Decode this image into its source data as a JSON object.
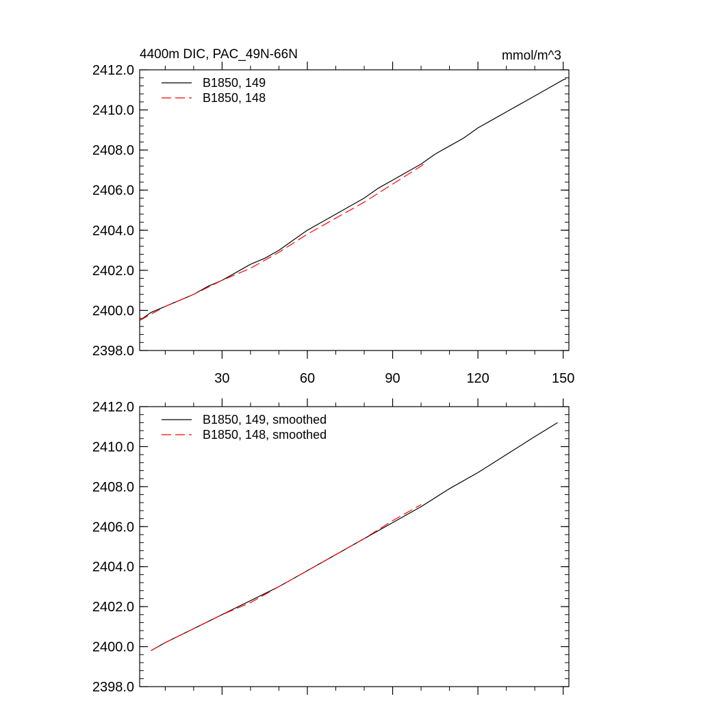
{
  "chart_data": [
    {
      "type": "line",
      "title": "4400m DIC, PAC_49N-66N",
      "units": "mmol/m^3",
      "xlim": [
        1,
        152
      ],
      "ylim": [
        2398.0,
        2412.0
      ],
      "x_ticks": [
        30,
        60,
        90,
        120,
        150
      ],
      "y_ticks": [
        "2398.0",
        "2400.0",
        "2402.0",
        "2404.0",
        "2406.0",
        "2408.0",
        "2410.0",
        "2412.0"
      ],
      "legend_position": "top-left",
      "series": [
        {
          "name": "B1850, 149",
          "color": "#000000",
          "dash": "solid",
          "x": [
            1,
            5,
            10,
            15,
            20,
            25,
            30,
            35,
            40,
            45,
            50,
            55,
            60,
            65,
            70,
            75,
            80,
            85,
            90,
            95,
            100,
            105,
            110,
            115,
            120,
            125,
            130,
            135,
            140,
            145,
            150,
            151
          ],
          "y": [
            2399.5,
            2399.9,
            2400.2,
            2400.5,
            2400.8,
            2401.2,
            2401.5,
            2401.9,
            2402.3,
            2402.6,
            2403.0,
            2403.5,
            2404.0,
            2404.4,
            2404.8,
            2405.2,
            2405.6,
            2406.1,
            2406.5,
            2406.9,
            2407.3,
            2407.8,
            2408.2,
            2408.6,
            2409.1,
            2409.5,
            2409.9,
            2410.3,
            2410.7,
            2411.1,
            2411.5,
            2411.55
          ]
        },
        {
          "name": "B1850, 148",
          "color": "#ff0000",
          "dash": "dashed",
          "x": [
            1,
            10,
            20,
            30,
            40,
            50,
            60,
            70,
            80,
            90,
            100,
            101
          ],
          "y": [
            2399.5,
            2400.2,
            2400.8,
            2401.5,
            2402.1,
            2402.9,
            2403.8,
            2404.6,
            2405.4,
            2406.3,
            2407.2,
            2407.3
          ]
        }
      ]
    },
    {
      "type": "line",
      "xlim": [
        1,
        152
      ],
      "ylim": [
        2398.0,
        2412.0
      ],
      "x_ticks": [
        30,
        60,
        90,
        120,
        150
      ],
      "y_ticks": [
        "2398.0",
        "2400.0",
        "2402.0",
        "2404.0",
        "2406.0",
        "2408.0",
        "2410.0",
        "2412.0"
      ],
      "legend_position": "top-left",
      "series": [
        {
          "name": "B1850, 149, smoothed",
          "color": "#000000",
          "dash": "solid",
          "x": [
            5,
            10,
            20,
            30,
            40,
            50,
            60,
            70,
            80,
            90,
            100,
            110,
            120,
            130,
            140,
            148
          ],
          "y": [
            2399.8,
            2400.2,
            2400.9,
            2401.6,
            2402.3,
            2403.0,
            2403.8,
            2404.6,
            2405.4,
            2406.2,
            2407.0,
            2407.9,
            2408.7,
            2409.6,
            2410.5,
            2411.2
          ]
        },
        {
          "name": "B1850, 148, smoothed",
          "color": "#ff0000",
          "dash": "dashed",
          "x": [
            5,
            10,
            20,
            30,
            40,
            50,
            60,
            70,
            80,
            90,
            100
          ],
          "y": [
            2399.8,
            2400.2,
            2400.9,
            2401.6,
            2402.2,
            2403.0,
            2403.8,
            2404.6,
            2405.4,
            2406.3,
            2407.1
          ]
        }
      ]
    }
  ]
}
